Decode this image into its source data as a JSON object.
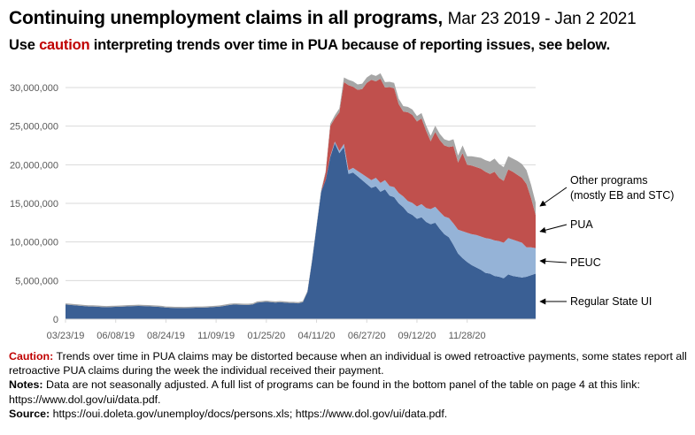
{
  "title": {
    "main": "Continuing unemployment claims in all programs,",
    "date_range": "Mar 23 2019 - Jan 2 2021"
  },
  "subtitle": {
    "prefix": "Use ",
    "highlight": "caution",
    "suffix": " interpreting trends over time in PUA because of reporting issues, see below."
  },
  "notes": {
    "caution_label": "Caution:",
    "caution_text": " Trends over time in PUA claims may be distorted because when an individual is owed retroactive payments, some states report all retroactive PUA claims during the week the individual received their payment.",
    "notes_label": "Notes:",
    "notes_text": "  Data are not seasonally adjusted. A full list of programs can be found in the bottom panel of the table on page 4 at this link: https://www.dol.gov/ui/data.pdf.",
    "source_label": "Source:",
    "source_text": "  https://oui.doleta.gov/unemploy/docs/persons.xls; https://www.dol.gov/ui/data.pdf."
  },
  "chart_data": {
    "type": "area",
    "stacked": true,
    "title": "Continuing unemployment claims in all programs, Mar 23 2019 - Jan 2 2021",
    "xlabel": "",
    "ylabel": "",
    "ylim": [
      0,
      30000000
    ],
    "yticks": [
      0,
      5000000,
      10000000,
      15000000,
      20000000,
      25000000,
      30000000
    ],
    "ytick_labels": [
      "0",
      "5,000,000",
      "10,000,000",
      "15,000,000",
      "20,000,000",
      "25,000,000",
      "30,000,000"
    ],
    "xtick_labels": [
      "03/23/19",
      "06/08/19",
      "08/24/19",
      "11/09/19",
      "01/25/20",
      "04/11/20",
      "06/27/20",
      "09/12/20",
      "11/28/20"
    ],
    "xtick_week_index": [
      0,
      11,
      22,
      33,
      44,
      55,
      66,
      77,
      88
    ],
    "grid": true,
    "series_order_note": "stacked bottom to top",
    "series": [
      {
        "name": "Regular State UI",
        "color": "#3a5f94",
        "values": [
          1900000,
          1850000,
          1800000,
          1750000,
          1700000,
          1650000,
          1650000,
          1620000,
          1580000,
          1560000,
          1580000,
          1600000,
          1620000,
          1650000,
          1680000,
          1700000,
          1720000,
          1700000,
          1680000,
          1650000,
          1620000,
          1580000,
          1500000,
          1480000,
          1460000,
          1450000,
          1440000,
          1460000,
          1480000,
          1500000,
          1500000,
          1520000,
          1560000,
          1600000,
          1650000,
          1750000,
          1850000,
          1900000,
          1880000,
          1860000,
          1850000,
          1900000,
          2150000,
          2200000,
          2250000,
          2200000,
          2150000,
          2200000,
          2150000,
          2100000,
          2100000,
          2050000,
          2200000,
          3500000,
          7500000,
          12000000,
          16500000,
          18000000,
          21000000,
          22800000,
          21500000,
          22300000,
          18800000,
          19000000,
          18500000,
          18000000,
          17500000,
          17000000,
          17200000,
          16500000,
          16800000,
          16000000,
          15800000,
          15000000,
          14500000,
          13800000,
          13500000,
          13000000,
          13200000,
          12600000,
          12300000,
          12500000,
          11700000,
          11000000,
          10600000,
          9600000,
          8500000,
          7900000,
          7400000,
          7000000,
          6700000,
          6400000,
          6000000,
          5900000,
          5600000,
          5500000,
          5300000,
          5800000,
          5600000,
          5500000,
          5400000,
          5500000,
          5700000,
          5900000
        ],
        "legend_label": "Regular State UI"
      },
      {
        "name": "PEUC",
        "color": "#95b3d7",
        "values": [
          0,
          0,
          0,
          0,
          0,
          0,
          0,
          0,
          0,
          0,
          0,
          0,
          0,
          0,
          0,
          0,
          0,
          0,
          0,
          0,
          0,
          0,
          0,
          0,
          0,
          0,
          0,
          0,
          0,
          0,
          0,
          0,
          0,
          0,
          0,
          0,
          0,
          0,
          0,
          0,
          0,
          0,
          0,
          0,
          0,
          0,
          0,
          0,
          0,
          0,
          0,
          0,
          0,
          0,
          0,
          0,
          0,
          0,
          100000,
          200000,
          300000,
          400000,
          500000,
          600000,
          700000,
          800000,
          900000,
          1000000,
          1100000,
          1150000,
          1200000,
          1250000,
          1300000,
          1350000,
          1400000,
          1500000,
          1550000,
          1600000,
          1700000,
          1800000,
          1950000,
          2050000,
          2200000,
          2300000,
          2500000,
          2800000,
          3100000,
          3500000,
          3800000,
          4000000,
          4200000,
          4300000,
          4500000,
          4500000,
          4600000,
          4600000,
          4600000,
          4700000,
          4700000,
          4600000,
          4500000,
          3800000,
          3600000,
          3300000
        ],
        "legend_label": "PEUC"
      },
      {
        "name": "PUA",
        "color": "#c0504d",
        "values": [
          0,
          0,
          0,
          0,
          0,
          0,
          0,
          0,
          0,
          0,
          0,
          0,
          0,
          0,
          0,
          0,
          0,
          0,
          0,
          0,
          0,
          0,
          0,
          0,
          0,
          0,
          0,
          0,
          0,
          0,
          0,
          0,
          0,
          0,
          0,
          0,
          0,
          0,
          0,
          0,
          0,
          0,
          0,
          0,
          0,
          0,
          0,
          0,
          0,
          0,
          0,
          0,
          0,
          0,
          0,
          0,
          0,
          1000000,
          3900000,
          3000000,
          5000000,
          8000000,
          11000000,
          10500000,
          10500000,
          11000000,
          12200000,
          13000000,
          12500000,
          13500000,
          12000000,
          12800000,
          12800000,
          11500000,
          11000000,
          11500000,
          11400000,
          11000000,
          11100000,
          10000000,
          8800000,
          9700000,
          9300000,
          9200000,
          9200000,
          10000000,
          8700000,
          10100000,
          8800000,
          8900000,
          8800000,
          8800000,
          8600000,
          8400000,
          8900000,
          8200000,
          8000000,
          8900000,
          8800000,
          8600000,
          8400000,
          8200000,
          6400000,
          4300000
        ],
        "legend_label": "PUA"
      },
      {
        "name": "Other programs (mostly EB and STC)",
        "color": "#a6a6a6",
        "values": [
          150000,
          150000,
          150000,
          150000,
          150000,
          150000,
          150000,
          150000,
          150000,
          150000,
          150000,
          150000,
          150000,
          150000,
          150000,
          150000,
          150000,
          150000,
          150000,
          150000,
          150000,
          150000,
          150000,
          150000,
          150000,
          150000,
          150000,
          150000,
          150000,
          150000,
          150000,
          150000,
          150000,
          150000,
          150000,
          150000,
          150000,
          150000,
          150000,
          150000,
          150000,
          150000,
          150000,
          150000,
          150000,
          150000,
          150000,
          150000,
          150000,
          150000,
          150000,
          150000,
          150000,
          150000,
          150000,
          150000,
          200000,
          200000,
          300000,
          400000,
          500000,
          600000,
          700000,
          700000,
          700000,
          700000,
          700000,
          700000,
          700000,
          700000,
          700000,
          700000,
          700000,
          700000,
          700000,
          700000,
          700000,
          700000,
          700000,
          700000,
          700000,
          800000,
          800000,
          800000,
          800000,
          900000,
          900000,
          1000000,
          1100000,
          1200000,
          1300000,
          1400000,
          1500000,
          1600000,
          1700000,
          1800000,
          1800000,
          1700000,
          1700000,
          1800000,
          1800000,
          1800000,
          1700000,
          1600000
        ],
        "legend_label_lines": [
          "Other programs",
          "(mostly EB and STC)"
        ]
      }
    ],
    "colors": {
      "axis": "#d9d9d9",
      "text": "#595959",
      "arrow": "#000000",
      "caution": "#c00000"
    }
  }
}
